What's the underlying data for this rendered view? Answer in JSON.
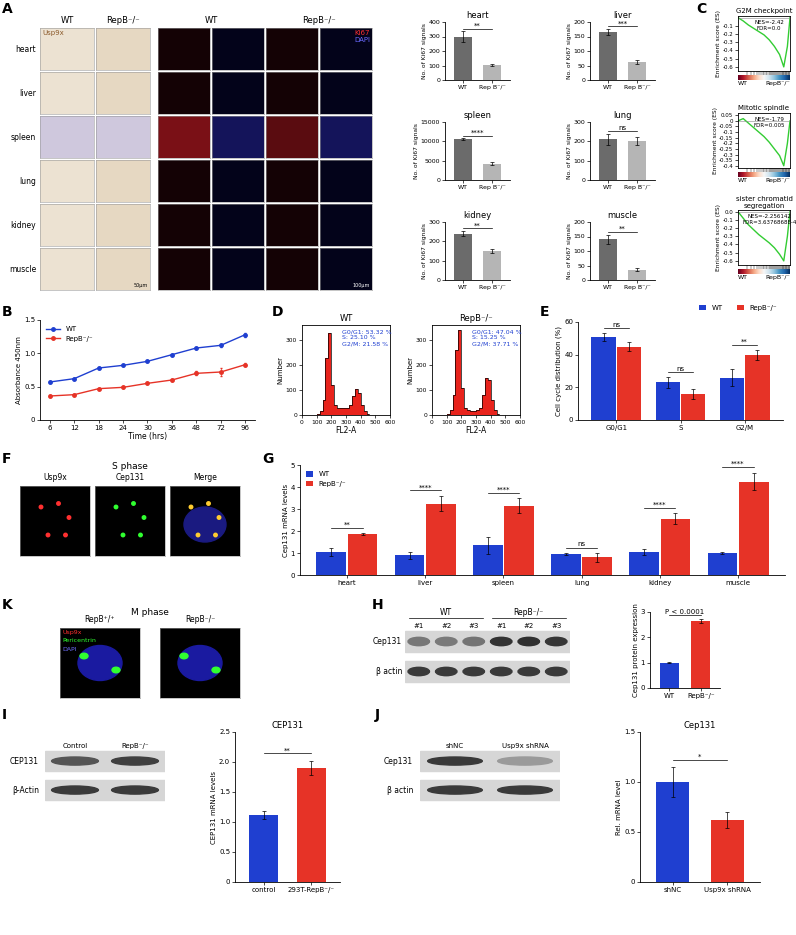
{
  "panel_labels": [
    "A",
    "B",
    "C",
    "D",
    "E",
    "F",
    "G",
    "H",
    "I",
    "J",
    "K"
  ],
  "panel_A_images": {
    "ihc_columns": [
      "WT",
      "RepB⁻/⁻"
    ],
    "if_columns": [
      "WT",
      "RepB⁻/⁻"
    ],
    "rows": [
      "heart",
      "liver",
      "spleen",
      "lung",
      "kidney",
      "muscle"
    ],
    "ihc_stain": "Usp9x",
    "if_stains": [
      "Ki67",
      "DAPI"
    ],
    "scale_bars": [
      "50μm",
      "100μm"
    ]
  },
  "panel_F_images": {
    "title": "S phase",
    "columns": [
      "Usp9x",
      "Cep131",
      "Merge"
    ]
  },
  "panel_K_images": {
    "title": "M phase",
    "columns": [
      "RepB⁺/⁺",
      "RepB⁻/⁻"
    ],
    "stains": [
      "Usp9x",
      "Pericentrin",
      "DAPI"
    ]
  },
  "blots": {
    "H": {
      "groups": [
        "WT",
        "RepB⁻/⁻"
      ],
      "lanes": [
        "#1",
        "#2",
        "#3",
        "#1",
        "#2",
        "#3"
      ],
      "rows": [
        "Cep131",
        "β actin"
      ]
    },
    "I": {
      "lanes": [
        "Control",
        "RepB⁻/⁻"
      ],
      "rows": [
        "CEP131",
        "β-Actin"
      ]
    },
    "J": {
      "lanes": [
        "shNC",
        "Usp9x shRNA"
      ],
      "rows": [
        "Cep131",
        "β actin"
      ]
    }
  },
  "chart_data": [
    {
      "type": "bar",
      "title": "heart",
      "categories": [
        "WT",
        "Rep B⁻/⁻"
      ],
      "values": [
        300,
        105
      ],
      "errors": [
        35,
        8
      ],
      "colors": [
        "#6b6b6b",
        "#b5b5b5"
      ],
      "ylabel": "No. of Ki67 signals",
      "ylim": [
        0,
        400
      ],
      "yticks": [
        0,
        100,
        200,
        300,
        400
      ],
      "annotation": "**"
    },
    {
      "type": "bar",
      "title": "liver",
      "categories": [
        "WT",
        "Rep B⁻/⁻"
      ],
      "values": [
        165,
        62
      ],
      "errors": [
        10,
        6
      ],
      "colors": [
        "#6b6b6b",
        "#b5b5b5"
      ],
      "ylabel": "No. of Ki67 signals",
      "ylim": [
        0,
        200
      ],
      "yticks": [
        0,
        50,
        100,
        150,
        200
      ],
      "annotation": "***"
    },
    {
      "type": "bar",
      "title": "spleen",
      "categories": [
        "WT",
        "Rep B⁻/⁻"
      ],
      "values": [
        10500,
        4200
      ],
      "errors": [
        250,
        350
      ],
      "colors": [
        "#6b6b6b",
        "#b5b5b5"
      ],
      "ylabel": "No. of Ki67 signals",
      "ylim": [
        0,
        15000
      ],
      "yticks": [
        0,
        5000,
        10000,
        15000
      ],
      "annotation": "****"
    },
    {
      "type": "bar",
      "title": "lung",
      "categories": [
        "WT",
        "Rep B⁻/⁻"
      ],
      "values": [
        210,
        200
      ],
      "errors": [
        30,
        20
      ],
      "colors": [
        "#6b6b6b",
        "#b5b5b5"
      ],
      "ylabel": "No. of Ki67 signals",
      "ylim": [
        0,
        300
      ],
      "yticks": [
        0,
        100,
        200,
        300
      ],
      "annotation": "ns"
    },
    {
      "type": "bar",
      "title": "kidney",
      "categories": [
        "WT",
        "Rep B⁻/⁻"
      ],
      "values": [
        240,
        150
      ],
      "errors": [
        12,
        12
      ],
      "colors": [
        "#6b6b6b",
        "#b5b5b5"
      ],
      "ylabel": "No. of Ki67 signals",
      "ylim": [
        0,
        300
      ],
      "yticks": [
        0,
        100,
        200,
        300
      ],
      "annotation": "**"
    },
    {
      "type": "bar",
      "title": "muscle",
      "categories": [
        "WT",
        "Rep B⁻/⁻"
      ],
      "values": [
        140,
        35
      ],
      "errors": [
        15,
        5
      ],
      "colors": [
        "#6b6b6b",
        "#b5b5b5"
      ],
      "ylabel": "No. of Ki67 signals",
      "ylim": [
        0,
        200
      ],
      "yticks": [
        0,
        50,
        100,
        150,
        200
      ],
      "annotation": "**"
    },
    {
      "type": "line",
      "title": "G2M checkpoint",
      "x": [
        0,
        10,
        20,
        30,
        40,
        50,
        60,
        70,
        80,
        88,
        95,
        100
      ],
      "values": [
        0,
        -0.04,
        -0.09,
        -0.13,
        -0.17,
        -0.21,
        -0.27,
        -0.35,
        -0.45,
        -0.6,
        -0.35,
        0
      ],
      "color": "#33cc33",
      "xlim": [
        0,
        100
      ],
      "ylim": [
        -0.65,
        0.02
      ],
      "yticks": [
        -0.1,
        -0.2,
        -0.3,
        -0.4,
        -0.5,
        -0.6
      ],
      "ylabel": "Enrichment score (ES)",
      "annotations": [
        "NES=-2.42",
        "FDR=0.0"
      ],
      "end_labels": [
        "WT",
        "RepB⁻/⁻"
      ],
      "tick_labels": "y"
    },
    {
      "type": "line",
      "title": "Mitotic spindle",
      "x": [
        0,
        10,
        20,
        30,
        40,
        50,
        60,
        70,
        80,
        88,
        95,
        100
      ],
      "values": [
        0,
        0.02,
        -0.02,
        -0.06,
        -0.1,
        -0.14,
        -0.19,
        -0.25,
        -0.31,
        -0.4,
        -0.2,
        0
      ],
      "color": "#33cc33",
      "xlim": [
        0,
        100
      ],
      "ylim": [
        -0.42,
        0.07
      ],
      "yticks": [
        0.05,
        0,
        -0.05,
        -0.1,
        -0.15,
        -0.2,
        -0.25,
        -0.3,
        -0.35,
        -0.4
      ],
      "ylabel": "Enrichment score (ES)",
      "annotations": [
        "NES=-1.79",
        "FDR=0.005"
      ],
      "end_labels": [
        "WT",
        "RepB⁻/⁻"
      ],
      "tick_labels": "y"
    },
    {
      "type": "line",
      "title": "sister chromatid segregation",
      "x": [
        0,
        10,
        20,
        30,
        40,
        50,
        60,
        70,
        80,
        88,
        95,
        100
      ],
      "values": [
        0,
        -0.08,
        -0.16,
        -0.22,
        -0.28,
        -0.33,
        -0.38,
        -0.44,
        -0.52,
        -0.6,
        -0.3,
        0
      ],
      "color": "#33cc33",
      "xlim": [
        0,
        100
      ],
      "ylim": [
        -0.65,
        0.02
      ],
      "yticks": [
        {
          "value": 0,
          "label": "0.0"
        },
        -0.1,
        -0.2,
        -0.3,
        -0.4,
        -0.5,
        -0.6
      ],
      "ylabel": "Enrichment score (ES)",
      "annotations": [
        "NES=-2.256142",
        "FDR=3.6376868E-4"
      ],
      "end_labels": [
        "WT",
        "RepB⁻/⁻"
      ],
      "tick_labels": "y"
    },
    {
      "type": "line",
      "categories": [
        "6",
        "12",
        "18",
        "24",
        "30",
        "36",
        "48",
        "72",
        "96"
      ],
      "series": [
        {
          "name": "WT",
          "color": "#1f3fd0",
          "marker": "o",
          "line_style": "solid",
          "values": [
            0.57,
            0.62,
            0.78,
            0.82,
            0.88,
            0.98,
            1.08,
            1.12,
            1.28
          ],
          "errors": [
            0.01,
            0.01,
            0.01,
            0.01,
            0.01,
            0.01,
            0.01,
            0.02,
            0.03
          ]
        },
        {
          "name": "RepB⁻/⁻",
          "color": "#e63327",
          "marker": "o",
          "line_style": "solid",
          "values": [
            0.36,
            0.38,
            0.47,
            0.49,
            0.55,
            0.6,
            0.7,
            0.72,
            0.83
          ],
          "errors": [
            0.01,
            0.01,
            0.01,
            0.01,
            0.01,
            0.02,
            0.03,
            0.06,
            0.02
          ]
        }
      ],
      "xlabel": "Time (hrs)",
      "ylabel": "Absorbance 450nm",
      "ylim": [
        0,
        1.5
      ],
      "yticks": [
        0,
        0.5,
        {
          "value": 1,
          "label": "1.0"
        },
        1.5
      ],
      "legend": "upper left"
    },
    {
      "type": "histogram",
      "title": "WT",
      "bins": [
        0,
        20,
        40,
        60,
        80,
        100,
        120,
        140,
        160,
        180,
        200,
        220,
        240,
        260,
        280,
        300,
        320,
        340,
        360,
        380,
        400,
        420,
        440,
        460,
        480,
        500,
        520,
        540,
        560,
        580,
        600
      ],
      "counts": [
        0,
        0,
        0,
        0,
        0,
        5,
        15,
        60,
        230,
        330,
        120,
        40,
        30,
        28,
        28,
        30,
        40,
        75,
        105,
        90,
        40,
        15,
        5,
        0,
        0,
        0,
        0,
        0,
        0,
        0
      ],
      "color": "#e8231c",
      "annotations": [
        "G0/G1: 53.32 %",
        "S: 25.10 %",
        "G2/M: 21.58 %"
      ],
      "xlabel": "FL2-A",
      "ylabel": "Number",
      "xlim": [
        0,
        600
      ],
      "xticks": [
        0,
        100,
        200,
        300,
        400,
        500,
        600
      ],
      "ylim": [
        0,
        360
      ],
      "yticks": [
        0,
        100,
        200,
        300
      ]
    },
    {
      "type": "histogram",
      "title": "RepB⁻/⁻",
      "bins": [
        0,
        20,
        40,
        60,
        80,
        100,
        120,
        140,
        160,
        180,
        200,
        220,
        240,
        260,
        280,
        300,
        320,
        340,
        360,
        380,
        400,
        420,
        440,
        460,
        480,
        500,
        520,
        540,
        560,
        580,
        600
      ],
      "counts": [
        0,
        0,
        0,
        0,
        0,
        5,
        20,
        80,
        260,
        340,
        110,
        30,
        20,
        18,
        18,
        20,
        30,
        80,
        150,
        140,
        60,
        20,
        5,
        0,
        0,
        0,
        0,
        0,
        0,
        0
      ],
      "color": "#e8231c",
      "annotations": [
        "G0/G1: 47.04 %",
        "S: 15.25 %",
        "G2/M: 37.71 %"
      ],
      "xlabel": "FL2-A",
      "ylabel": "Number",
      "xlim": [
        0,
        600
      ],
      "xticks": [
        0,
        100,
        200,
        300,
        400,
        500,
        600
      ],
      "ylim": [
        0,
        360
      ],
      "yticks": [
        0,
        100,
        200,
        300
      ]
    },
    {
      "type": "bar",
      "categories": [
        "G0/G1",
        "S",
        "G2/M"
      ],
      "series": [
        {
          "name": "WT",
          "color": "#1f3fd0",
          "values": [
            51,
            23,
            26
          ],
          "errors": [
            2.5,
            3.5,
            5
          ]
        },
        {
          "name": "RepB⁻/⁻",
          "color": "#e63327",
          "values": [
            45,
            16,
            40
          ],
          "errors": [
            2.5,
            3,
            3
          ]
        }
      ],
      "ylabel": "Cell cycle distribution (%)",
      "ylim": [
        0,
        60
      ],
      "yticks": [
        0,
        20,
        40,
        60
      ],
      "annotations": [
        "ns",
        "ns",
        "**"
      ],
      "legend": "upper right"
    },
    {
      "type": "bar",
      "categories": [
        "heart",
        "liver",
        "spleen",
        "lung",
        "kidney",
        "muscle"
      ],
      "series": [
        {
          "name": "WT",
          "color": "#1f3fd0",
          "values": [
            1.05,
            0.9,
            1.35,
            0.95,
            1.05,
            1.0
          ],
          "errors": [
            0.2,
            0.15,
            0.4,
            0.05,
            0.15,
            0.05
          ]
        },
        {
          "name": "RepB⁻/⁻",
          "color": "#e63327",
          "values": [
            1.85,
            3.25,
            3.15,
            0.8,
            2.55,
            4.25
          ],
          "errors": [
            0.05,
            0.35,
            0.35,
            0.2,
            0.25,
            0.4
          ]
        }
      ],
      "ylabel": "Cep131 mRNA levels",
      "ylim": [
        0,
        5
      ],
      "yticks": [
        0,
        1,
        2,
        3,
        4,
        5
      ],
      "annotations": [
        "**",
        "****",
        "****",
        "ns",
        "****",
        "****"
      ],
      "legend": "upper left"
    },
    {
      "type": "bar",
      "categories": [
        "WT",
        "RepB⁻/⁻"
      ],
      "values": [
        1.0,
        2.65
      ],
      "errors": [
        0.03,
        0.08
      ],
      "colors": [
        "#1f3fd0",
        "#e63327"
      ],
      "ylabel": "Cep131 protein expression",
      "ylim": [
        0,
        3
      ],
      "yticks": [
        0,
        1,
        2,
        3
      ],
      "annotation": "P < 0.0001"
    },
    {
      "type": "bar",
      "title": "CEP131",
      "categories": [
        "control",
        "293T-RepB⁻/⁻"
      ],
      "values": [
        1.12,
        1.9
      ],
      "errors": [
        0.07,
        0.12
      ],
      "colors": [
        "#1f3fd0",
        "#e63327"
      ],
      "ylabel": "CEP131 mRNA levels",
      "ylim": [
        0,
        2.5
      ],
      "yticks": [
        0,
        0.5,
        {
          "value": 1,
          "label": "1.0"
        },
        1.5,
        {
          "value": 2,
          "label": "2.0"
        },
        2.5
      ],
      "annotation": "**"
    },
    {
      "type": "bar",
      "title": "Cep131",
      "categories": [
        "shNC",
        "Usp9x shRNA"
      ],
      "values": [
        1.0,
        0.62
      ],
      "errors": [
        0.15,
        0.08
      ],
      "colors": [
        "#1f3fd0",
        "#e63327"
      ],
      "ylabel": "Rel. mRNA level",
      "ylim": [
        0,
        1.5
      ],
      "yticks": [
        0,
        0.5,
        {
          "value": 1,
          "label": "1.0"
        },
        1.5
      ],
      "annotation": "*"
    }
  ]
}
